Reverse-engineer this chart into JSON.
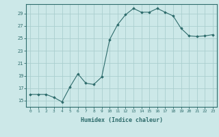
{
  "x": [
    0,
    1,
    2,
    3,
    4,
    5,
    6,
    7,
    8,
    9,
    10,
    11,
    12,
    13,
    14,
    15,
    16,
    17,
    18,
    19,
    20,
    21,
    22,
    23
  ],
  "y": [
    16,
    16,
    16,
    15.5,
    14.8,
    17.2,
    19.3,
    17.8,
    17.6,
    18.8,
    24.8,
    27.2,
    28.8,
    29.8,
    29.2,
    29.2,
    29.8,
    29.2,
    28.6,
    26.6,
    25.4,
    25.3,
    25.4,
    25.6
  ],
  "line_color": "#2d6b6b",
  "marker": "D",
  "markersize": 1.8,
  "bg_color": "#cce8e8",
  "grid_color": "#aacece",
  "axis_color": "#2d6b6b",
  "tick_color": "#2d6b6b",
  "label_color": "#2d6b6b",
  "xlabel": "Humidex (Indice chaleur)",
  "yticks": [
    15,
    17,
    19,
    21,
    23,
    25,
    27,
    29
  ],
  "ytick_labels": [
    "15",
    "17",
    "19",
    "21",
    "23",
    "25",
    "27",
    "29"
  ],
  "ylim": [
    14.0,
    30.5
  ],
  "xlim": [
    -0.5,
    23.5
  ]
}
